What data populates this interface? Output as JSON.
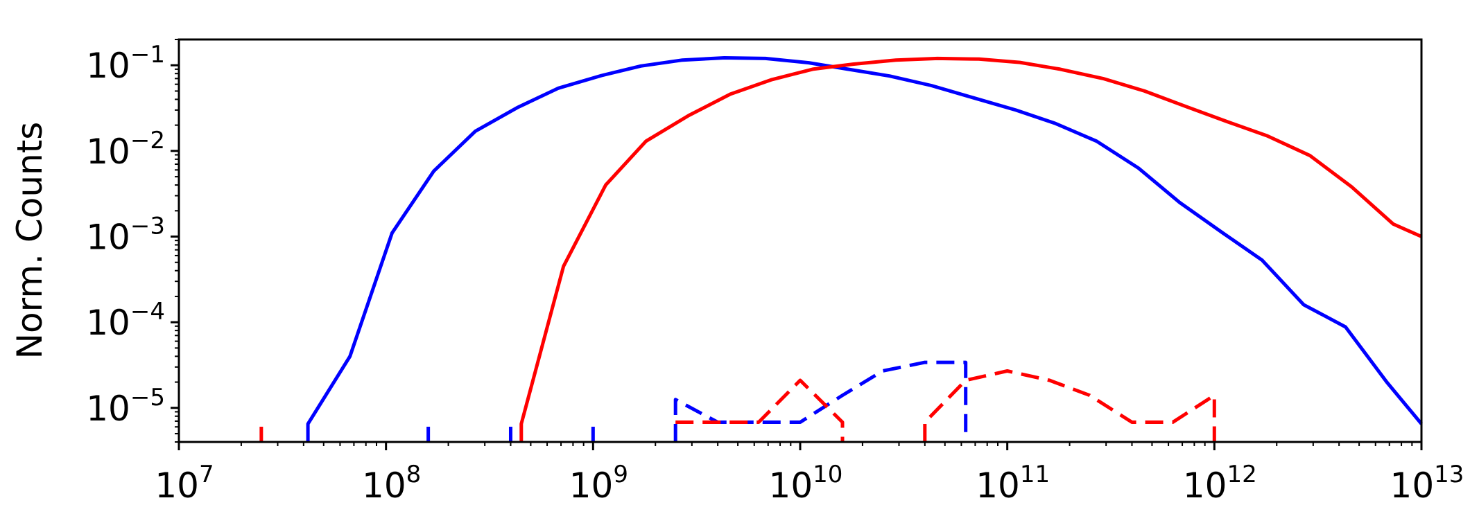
{
  "chart_data": {
    "type": "line",
    "title": "",
    "xlabel": "",
    "ylabel": "Norm. Counts",
    "x_scale": "log",
    "y_scale": "log",
    "xlim": [
      10000000.0,
      10000000000000.0
    ],
    "ylim": [
      4e-06,
      0.2
    ],
    "grid": false,
    "legend": "none",
    "x_ticks": [
      {
        "base": "10",
        "exp": "7",
        "value": 10000000.0
      },
      {
        "base": "10",
        "exp": "8",
        "value": 100000000.0
      },
      {
        "base": "10",
        "exp": "9",
        "value": 1000000000.0
      },
      {
        "base": "10",
        "exp": "10",
        "value": 10000000000.0
      },
      {
        "base": "10",
        "exp": "11",
        "value": 100000000000.0
      },
      {
        "base": "10",
        "exp": "12",
        "value": 1000000000000.0
      },
      {
        "base": "10",
        "exp": "13",
        "value": 10000000000000.0
      }
    ],
    "y_ticks": [
      {
        "base": "10",
        "exp": "−5",
        "value": 1e-05
      },
      {
        "base": "10",
        "exp": "−4",
        "value": 0.0001
      },
      {
        "base": "10",
        "exp": "−3",
        "value": 0.001
      },
      {
        "base": "10",
        "exp": "−2",
        "value": 0.01
      },
      {
        "base": "10",
        "exp": "−1",
        "value": 0.1
      }
    ],
    "series": [
      {
        "color": "#0000ff",
        "dash": "solid",
        "points": [
          [
            42000000.0,
            4e-06
          ],
          [
            42000000.0,
            6.5e-06
          ],
          [
            67000000.0,
            4e-05
          ],
          [
            107000000.0,
            0.0011
          ],
          [
            170000000.0,
            0.0058
          ],
          [
            270000000.0,
            0.017
          ],
          [
            430000000.0,
            0.032
          ],
          [
            680000000.0,
            0.054
          ],
          [
            1100000000.0,
            0.076
          ],
          [
            1700000000.0,
            0.098
          ],
          [
            2700000000.0,
            0.115
          ],
          [
            4300000000.0,
            0.122
          ],
          [
            6800000000.0,
            0.12
          ],
          [
            11000000000.0,
            0.107
          ],
          [
            17000000000.0,
            0.09
          ],
          [
            27000000000.0,
            0.075
          ],
          [
            43000000000.0,
            0.058
          ],
          [
            68000000000.0,
            0.042
          ],
          [
            110000000000.0,
            0.03
          ],
          [
            170000000000.0,
            0.021
          ],
          [
            270000000000.0,
            0.013
          ],
          [
            430000000000.0,
            0.0063
          ],
          [
            680000000000.0,
            0.0025
          ],
          [
            1100000000000.0,
            0.0011
          ],
          [
            1700000000000.0,
            0.00053
          ],
          [
            2700000000000.0,
            0.00016
          ],
          [
            4300000000000.0,
            8.8e-05
          ],
          [
            6800000000000.0,
            2e-05
          ],
          [
            10000000000000.0,
            6.5e-06
          ]
        ]
      },
      {
        "color": "#ff0000",
        "dash": "solid",
        "points": [
          [
            450000000.0,
            4e-06
          ],
          [
            450000000.0,
            6.5e-06
          ],
          [
            720000000.0,
            0.00045
          ],
          [
            1150000000.0,
            0.004
          ],
          [
            1800000000.0,
            0.013
          ],
          [
            2900000000.0,
            0.026
          ],
          [
            4600000000.0,
            0.046
          ],
          [
            7300000000.0,
            0.068
          ],
          [
            11500000000.0,
            0.09
          ],
          [
            18000000000.0,
            0.103
          ],
          [
            29000000000.0,
            0.115
          ],
          [
            46000000000.0,
            0.12
          ],
          [
            73000000000.0,
            0.118
          ],
          [
            115000000000.0,
            0.108
          ],
          [
            180000000000.0,
            0.09
          ],
          [
            290000000000.0,
            0.07
          ],
          [
            460000000000.0,
            0.05
          ],
          [
            730000000000.0,
            0.033
          ],
          [
            1150000000000.0,
            0.022
          ],
          [
            1800000000000.0,
            0.015
          ],
          [
            2900000000000.0,
            0.0088
          ],
          [
            4600000000000.0,
            0.0038
          ],
          [
            7300000000000.0,
            0.0014
          ],
          [
            10000000000000.0,
            0.001
          ]
        ]
      },
      {
        "color": "#0000ff",
        "dash": "dashed",
        "points": [
          [
            2500000000.0,
            4e-06
          ],
          [
            2500000000.0,
            1.25e-05
          ],
          [
            4000000000.0,
            6.8e-06
          ],
          [
            6300000000.0,
            6.8e-06
          ],
          [
            10000000000.0,
            6.8e-06
          ],
          [
            16000000000.0,
            1.4e-05
          ],
          [
            25000000000.0,
            2.7e-05
          ],
          [
            40000000000.0,
            3.4e-05
          ],
          [
            63000000000.0,
            3.4e-05
          ],
          [
            63000000000.0,
            4e-06
          ]
        ]
      },
      {
        "color": "#ff0000",
        "dash": "dashed",
        "points": [
          [
            2500000000.0,
            6.8e-06
          ],
          [
            4000000000.0,
            6.8e-06
          ],
          [
            6300000000.0,
            6.8e-06
          ],
          [
            10000000000.0,
            2.1e-05
          ],
          [
            16000000000.0,
            6.8e-06
          ],
          [
            16000000000.0,
            4e-06
          ]
        ]
      },
      {
        "color": "#ff0000",
        "dash": "dashed",
        "points": [
          [
            40000000000.0,
            4e-06
          ],
          [
            40000000000.0,
            6.8e-06
          ],
          [
            63000000000.0,
            2.1e-05
          ],
          [
            100000000000.0,
            2.7e-05
          ],
          [
            160000000000.0,
            2.1e-05
          ],
          [
            250000000000.0,
            1.4e-05
          ],
          [
            400000000000.0,
            6.8e-06
          ],
          [
            630000000000.0,
            6.8e-06
          ],
          [
            1000000000000.0,
            1.4e-05
          ],
          [
            1000000000000.0,
            4e-06
          ]
        ]
      }
    ],
    "rug_marks": [
      {
        "x": 25000000.0,
        "color": "#ff0000"
      },
      {
        "x": 160000000.0,
        "color": "#0000ff"
      },
      {
        "x": 400000000.0,
        "color": "#0000ff"
      },
      {
        "x": 1000000000.0,
        "color": "#0000ff"
      }
    ]
  }
}
